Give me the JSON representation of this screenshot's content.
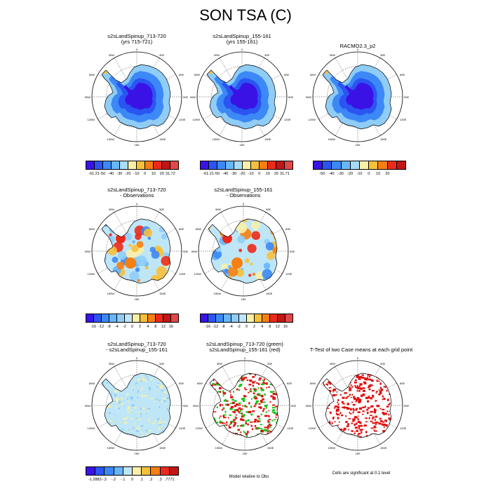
{
  "title": "SON TSA (C)",
  "panels": [
    {
      "id": "p1",
      "title1": "s2sLandSpinup_713-720",
      "title2": "(yrs 715-721)",
      "style": "cold"
    },
    {
      "id": "p2",
      "title1": "s2sLandSpinup_155-161",
      "title2": "(yrs 155-161)",
      "style": "cold"
    },
    {
      "id": "p3",
      "title1": "RACMO2.3_p2",
      "title2": "",
      "style": "cold"
    },
    {
      "id": "p4",
      "title1": "s2sLandSpinup_713-720",
      "title2": "- Observations",
      "style": "anom"
    },
    {
      "id": "p5",
      "title1": "s2sLandSpinup_155-161",
      "title2": "- Observations",
      "style": "anom"
    },
    {
      "id": "p7",
      "title1": "s2sLandSpinup_713-720",
      "title2": "- s2sLandSpinup_155-161",
      "style": "diff"
    },
    {
      "id": "p8",
      "title1": "s2sLandSpinup_713-720 (green)",
      "title2": "s2sLandSpinup_155-161 (red)",
      "style": "rg"
    },
    {
      "id": "p9",
      "title1": "T-Test of two Case means at each grid point",
      "title2": "",
      "style": "red"
    }
  ],
  "map_labels": {
    "top": "0",
    "bottom": "180",
    "left": "90W",
    "right": "90E",
    "ul1": "30W",
    "ul2": "60W",
    "ur1": "30E",
    "ur2": "60E",
    "ll1": "120W",
    "ll2": "150W",
    "lr1": "120E",
    "lr2": "150E"
  },
  "colorbars": [
    {
      "id": "cb1",
      "colors": [
        "#3a12e6",
        "#2a55f2",
        "#3c88f6",
        "#67b6f9",
        "#a8dbf5",
        "#f9f0a8",
        "#f7c03a",
        "#f57f12",
        "#ec2a1c",
        "#c11616",
        "#e24747"
      ],
      "labels": [
        "-61.21",
        "-50",
        "-40",
        "-30",
        "-20",
        "-10",
        "0",
        "10",
        "20",
        "31.72"
      ]
    },
    {
      "id": "cb2",
      "colors": [
        "#3a12e6",
        "#2a55f2",
        "#3c88f6",
        "#67b6f9",
        "#a8dbf5",
        "#f9f0a8",
        "#f7c03a",
        "#f57f12",
        "#ec2a1c",
        "#c11616",
        "#e24747"
      ],
      "labels": [
        "-61.21",
        "-50",
        "-40",
        "-30",
        "-20",
        "-10",
        "0",
        "10",
        "20",
        "31.71"
      ]
    },
    {
      "id": "cb3",
      "colors": [
        "#3a12e6",
        "#2a55f2",
        "#3c88f6",
        "#67b6f9",
        "#a8dbf5",
        "#f9f0a8",
        "#f7c03a",
        "#f57f12",
        "#ec2a1c",
        "#c11616"
      ],
      "labels": [
        "-50",
        "-40",
        "-30",
        "-20",
        "-10",
        "0",
        "10",
        "20"
      ]
    },
    {
      "id": "cb4",
      "colors": [
        "#3a12e6",
        "#2a55f2",
        "#3c88f6",
        "#67b6f9",
        "#8fcdf7",
        "#bfe6f7",
        "#f9f0a8",
        "#f7c03a",
        "#f57f12",
        "#ec2a1c",
        "#c11616",
        "#e24747"
      ],
      "labels": [
        "-16",
        "-12",
        "-8",
        "-4",
        "-2",
        "0",
        "2",
        "4",
        "8",
        "12",
        "16"
      ]
    },
    {
      "id": "cb5",
      "colors": [
        "#3a12e6",
        "#2a55f2",
        "#3c88f6",
        "#67b6f9",
        "#8fcdf7",
        "#bfe6f7",
        "#f9f0a8",
        "#f7c03a",
        "#f57f12",
        "#ec2a1c",
        "#c11616",
        "#e24747"
      ],
      "labels": [
        "-16",
        "-12",
        "-8",
        "-4",
        "-2",
        "0",
        "2",
        "4",
        "8",
        "12",
        "16"
      ]
    },
    {
      "id": "cb7",
      "colors": [
        "#3a12e6",
        "#2a55f2",
        "#3c88f6",
        "#67b6f9",
        "#bfe6f7",
        "#f9f0a8",
        "#f7c03a",
        "#f57f12",
        "#ec2a1c",
        "#c11616"
      ],
      "labels": [
        "-1.2883",
        "-.3",
        "-.2",
        "-.1",
        "0",
        ".1",
        ".2",
        ".3",
        ".7771"
      ]
    }
  ],
  "captions": {
    "model_rel": "Model relative to Obs",
    "significant": "Cells are significant at 0.1 level"
  },
  "chart_data": [
    {
      "type": "heatmap",
      "title": "s2sLandSpinup_713-720 (yrs 715-721)",
      "colorbar_levels": [
        "-61.21",
        "-50",
        "-40",
        "-30",
        "-20",
        "-10",
        "0",
        "10",
        "20",
        "31.72"
      ]
    },
    {
      "type": "heatmap",
      "title": "s2sLandSpinup_155-161 (yrs 155-161)",
      "colorbar_levels": [
        "-61.21",
        "-50",
        "-40",
        "-30",
        "-20",
        "-10",
        "0",
        "10",
        "20",
        "31.71"
      ]
    },
    {
      "type": "heatmap",
      "title": "RACMO2.3_p2",
      "colorbar_levels": [
        "-50",
        "-40",
        "-30",
        "-20",
        "-10",
        "0",
        "10",
        "20"
      ]
    },
    {
      "type": "heatmap",
      "title": "s2sLandSpinup_713-720 - Observations",
      "colorbar_levels": [
        "-16",
        "-12",
        "-8",
        "-4",
        "-2",
        "0",
        "2",
        "4",
        "8",
        "12",
        "16"
      ]
    },
    {
      "type": "heatmap",
      "title": "s2sLandSpinup_155-161 - Observations",
      "colorbar_levels": [
        "-16",
        "-12",
        "-8",
        "-4",
        "-2",
        "0",
        "2",
        "4",
        "8",
        "12",
        "16"
      ]
    },
    {
      "type": "heatmap",
      "title": "s2sLandSpinup_713-720 - s2sLandSpinup_155-161",
      "colorbar_levels": [
        "-1.2883",
        "-.3",
        "-.2",
        "-.1",
        "0",
        ".1",
        ".2",
        ".3",
        ".7771"
      ]
    },
    {
      "type": "heatmap",
      "title": "s2sLandSpinup_713-720 (green) s2sLandSpinup_155-161 (red)",
      "caption": "Model relative to Obs"
    },
    {
      "type": "heatmap",
      "title": "T-Test of two Case means at each grid point",
      "caption": "Cells are significant at 0.1 level"
    }
  ]
}
